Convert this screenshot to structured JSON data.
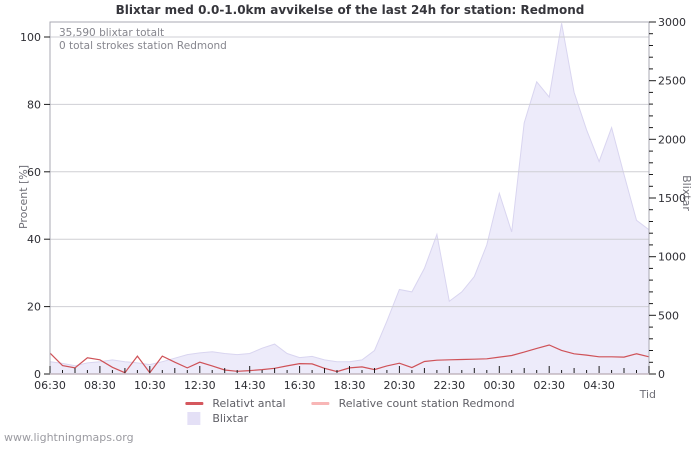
{
  "title": "Blixtar med 0.0-1.0km avvikelse of the last 24h for station: Redmond",
  "annotation": {
    "line1": "35,590 blixtar totalt",
    "line2": "0 total strokes station Redmond"
  },
  "watermark": "www.lightningmaps.org",
  "colors": {
    "area_fill": "#edebfa",
    "area_edge": "#d9d5f0",
    "relativt_line": "#cf5258",
    "station_line": "#f7b3b3",
    "grid": "#cfcfd4",
    "plot_border": "#a9a9b3",
    "tick": "#1c1c1c",
    "tick_label": "#2e2e34",
    "title_text": "#36363c",
    "annotation_text": "#86868e",
    "legend_text": "#5f5f66"
  },
  "chart_data": {
    "type": "area",
    "title": "Blixtar med 0.0-1.0km avvikelse of the last 24h for station: Redmond",
    "x_label": "Tid",
    "y_left_label": "Procent  [%]",
    "y_right_label": "Blixtar",
    "y_left_max": 100,
    "y_right_max": 3000,
    "y_left_ticks": [
      0,
      20,
      40,
      60,
      80,
      100
    ],
    "y_right_ticks": [
      0,
      500,
      1000,
      1500,
      2000,
      2500,
      3000
    ],
    "y_right_minor_step": 100,
    "grid": "horizontal-only",
    "legend_position": "bottom-center",
    "x": [
      "06:30",
      "07:00",
      "07:30",
      "08:00",
      "08:30",
      "09:00",
      "09:30",
      "10:00",
      "10:30",
      "11:00",
      "11:30",
      "12:00",
      "12:30",
      "13:00",
      "13:30",
      "14:00",
      "14:30",
      "15:00",
      "15:30",
      "16:00",
      "16:30",
      "17:00",
      "17:30",
      "18:00",
      "18:30",
      "19:00",
      "19:30",
      "20:00",
      "20:30",
      "21:00",
      "21:30",
      "22:00",
      "22:30",
      "23:00",
      "23:30",
      "00:00",
      "00:30",
      "01:00",
      "01:30",
      "02:00",
      "02:30",
      "03:00",
      "03:30",
      "04:00",
      "04:30",
      "05:00",
      "05:30",
      "06:00",
      "06:30"
    ],
    "x_tick_label_every_steps": 4,
    "series": [
      {
        "name": "Blixtar",
        "type": "area",
        "axis": "right",
        "color": "#edebfa",
        "edge_color": "#d9d5f0",
        "values": [
          105,
          90,
          70,
          95,
          105,
          120,
          105,
          95,
          80,
          105,
          135,
          165,
          180,
          190,
          175,
          165,
          175,
          220,
          255,
          175,
          140,
          150,
          120,
          105,
          105,
          120,
          200,
          450,
          720,
          700,
          900,
          1190,
          620,
          700,
          830,
          1100,
          1540,
          1210,
          2140,
          2490,
          2360,
          2990,
          2400,
          2080,
          1810,
          2100,
          1700,
          1310,
          1230
        ]
      },
      {
        "name": "Relativt antal",
        "type": "line",
        "axis": "left",
        "color": "#cf5258",
        "values": [
          6.2,
          2.5,
          1.8,
          4.8,
          4.2,
          2.0,
          0.4,
          5.3,
          0.4,
          5.3,
          3.5,
          1.8,
          3.5,
          2.4,
          1.2,
          0.8,
          1.0,
          1.3,
          1.7,
          2.4,
          3.1,
          3.0,
          1.7,
          0.7,
          1.8,
          2.1,
          1.3,
          2.4,
          3.2,
          1.9,
          3.7,
          4.1,
          4.2,
          4.3,
          4.4,
          4.5,
          5.0,
          5.5,
          6.5,
          7.6,
          8.6,
          7.0,
          6.0,
          5.6,
          5.1,
          5.1,
          5.0,
          6.0,
          5.1
        ]
      },
      {
        "name": "Relative count station Redmond",
        "type": "line",
        "axis": "left",
        "color": "#f7b3b3",
        "values": [
          0,
          0,
          0,
          0,
          0,
          0,
          0,
          0,
          0,
          0,
          0,
          0,
          0,
          0,
          0,
          0,
          0,
          0,
          0,
          0,
          0,
          0,
          0,
          0,
          0,
          0,
          0,
          0,
          0,
          0,
          0,
          0,
          0,
          0,
          0,
          0,
          0,
          0,
          0,
          0,
          0,
          0,
          0,
          0,
          0,
          0,
          0,
          0,
          0
        ]
      }
    ],
    "legend": [
      {
        "label": "Relativt antal",
        "swatch": "line",
        "color": "#d5585e"
      },
      {
        "label": "Relative count station Redmond",
        "swatch": "line",
        "color": "#f8b6b6"
      },
      {
        "label": "Blixtar",
        "swatch": "area",
        "color": "#e4e0f6"
      }
    ]
  }
}
